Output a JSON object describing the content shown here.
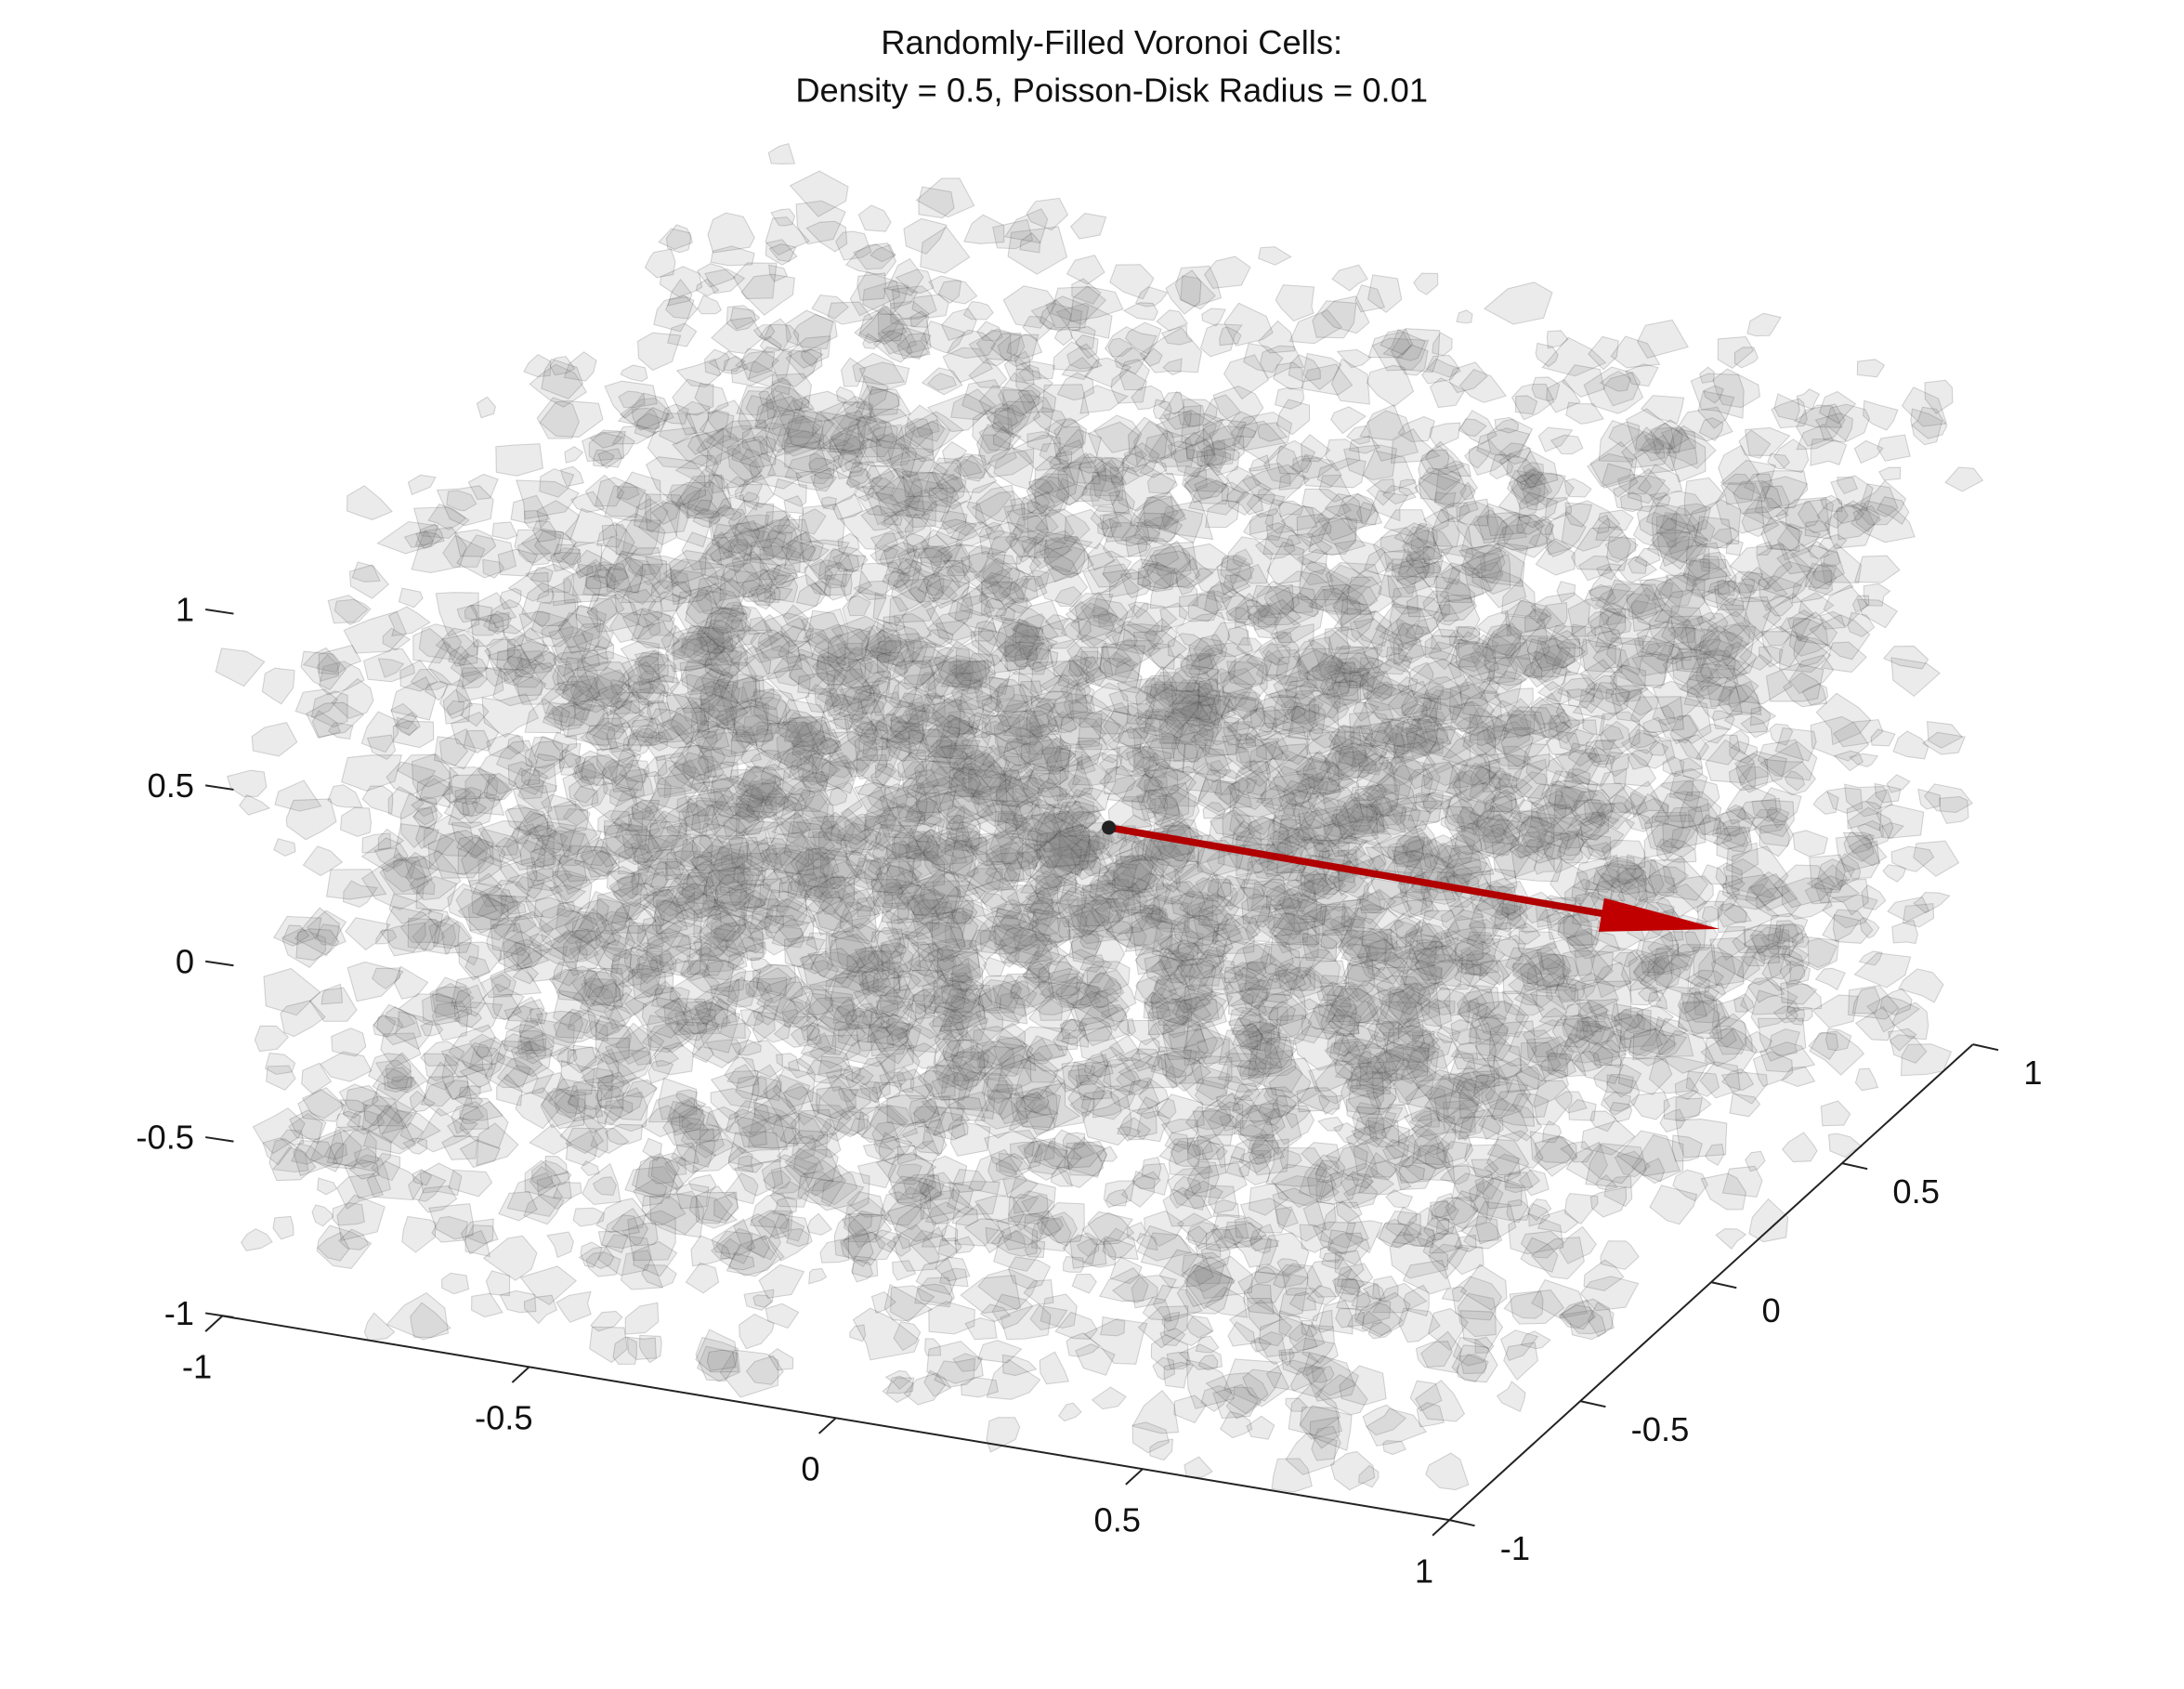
{
  "chart_data": {
    "type": "3d",
    "title": [
      "Randomly-Filled Voronoi Cells:",
      "Density = 0.5, Poisson-Disk Radius = 0.01"
    ],
    "xlim": [
      -1,
      1
    ],
    "xticks": [
      -1,
      -0.5,
      0,
      0.5,
      1
    ],
    "ylim": [
      -1,
      1
    ],
    "yticks": [
      -1,
      -0.5,
      0,
      0.5,
      1
    ],
    "zlim": [
      -1,
      1
    ],
    "zticks": [
      -1,
      -0.5,
      0,
      0.5,
      1
    ],
    "color": "#808080"
  }
}
